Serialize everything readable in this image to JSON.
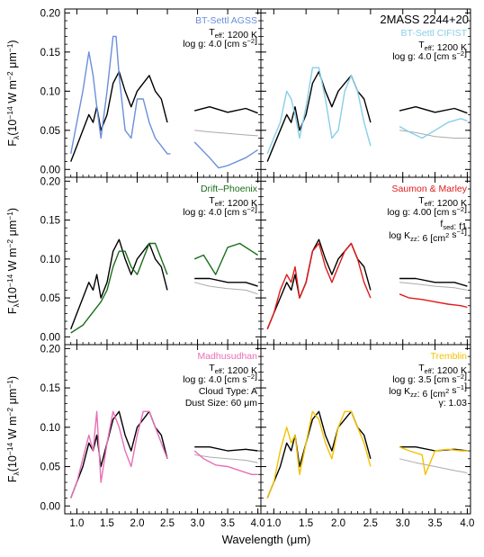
{
  "figure": {
    "object_name": "2MASS 2244+20",
    "ylabel_parts": {
      "f": "F",
      "lambda": "λ",
      "pre": "(10",
      "exp": "−14",
      "mid": " W m",
      "exp2": "−2",
      "mid2": " μm",
      "exp3": "−1",
      "post": ")"
    },
    "xlabel": "Wavelength (μm)",
    "y_ticks": [
      "0.00",
      "0.05",
      "0.10",
      "0.15",
      "0.20"
    ],
    "x_ticks": [
      "1.0",
      "1.5",
      "2.0",
      "2.5",
      "3.0",
      "3.5",
      "4.0"
    ],
    "observed_color": "#000000",
    "smoothed_color": "#aaaaaa"
  },
  "chart_data": [
    {
      "type": "line",
      "panel": "BT-Settl AGSS",
      "model_color": "#6a8fdb",
      "annotations": [
        [
          "BT-Settl AGSS"
        ],
        [
          "T",
          "eff",
          ": 1200 K"
        ],
        [
          "log g: 4.0 [cm s",
          "−2",
          "]"
        ]
      ],
      "xlim": [
        0.8,
        4.05
      ],
      "ylim": [
        -0.01,
        0.205
      ],
      "series": [
        {
          "name": "observed",
          "x": [
            0.9,
            1.0,
            1.1,
            1.2,
            1.27,
            1.33,
            1.4,
            1.5,
            1.6,
            1.7,
            1.8,
            1.9,
            2.0,
            2.1,
            2.2,
            2.3,
            2.4,
            2.5
          ],
          "y": [
            0.01,
            0.03,
            0.05,
            0.07,
            0.06,
            0.08,
            0.05,
            0.07,
            0.11,
            0.125,
            0.1,
            0.08,
            0.1,
            0.11,
            0.12,
            0.1,
            0.09,
            0.06
          ]
        },
        {
          "name": "observed",
          "x": [
            2.95,
            3.2,
            3.5,
            3.8,
            4.0
          ],
          "y": [
            0.075,
            0.08,
            0.073,
            0.078,
            0.072
          ]
        },
        {
          "name": "model",
          "x": [
            0.9,
            1.0,
            1.1,
            1.2,
            1.27,
            1.33,
            1.4,
            1.5,
            1.6,
            1.65,
            1.7,
            1.8,
            1.9,
            2.0,
            2.1,
            2.2,
            2.3,
            2.4,
            2.5,
            2.55
          ],
          "y": [
            0.02,
            0.06,
            0.1,
            0.15,
            0.12,
            0.08,
            0.04,
            0.1,
            0.17,
            0.17,
            0.12,
            0.05,
            0.04,
            0.09,
            0.09,
            0.06,
            0.04,
            0.03,
            0.02,
            0.02
          ]
        },
        {
          "name": "model",
          "x": [
            2.95,
            3.2,
            3.35,
            3.5,
            3.8,
            4.0
          ],
          "y": [
            0.035,
            0.015,
            0.002,
            0.005,
            0.015,
            0.025
          ]
        },
        {
          "name": "smoothed",
          "x": [
            2.95,
            3.2,
            3.5,
            3.8,
            4.0
          ],
          "y": [
            0.05,
            0.048,
            0.046,
            0.044,
            0.043
          ]
        }
      ]
    },
    {
      "type": "line",
      "panel": "BT-Settl CIFIST",
      "model_color": "#87cfe8",
      "annotations": [
        [
          "BT-Settl CIFIST"
        ],
        [
          "T",
          "eff",
          ": 1200 K"
        ],
        [
          "log g: 4.0 [cm s",
          "−2",
          "]"
        ]
      ],
      "xlim": [
        0.8,
        4.05
      ],
      "ylim": [
        -0.01,
        0.205
      ],
      "series": [
        {
          "name": "observed",
          "x": [
            0.9,
            1.0,
            1.1,
            1.2,
            1.27,
            1.33,
            1.4,
            1.5,
            1.6,
            1.7,
            1.8,
            1.9,
            2.0,
            2.1,
            2.2,
            2.3,
            2.4,
            2.5
          ],
          "y": [
            0.01,
            0.03,
            0.05,
            0.07,
            0.06,
            0.08,
            0.05,
            0.07,
            0.11,
            0.125,
            0.1,
            0.08,
            0.1,
            0.11,
            0.12,
            0.1,
            0.09,
            0.06
          ]
        },
        {
          "name": "observed",
          "x": [
            2.95,
            3.2,
            3.5,
            3.8,
            4.0
          ],
          "y": [
            0.075,
            0.08,
            0.073,
            0.078,
            0.072
          ]
        },
        {
          "name": "model",
          "x": [
            0.9,
            1.0,
            1.1,
            1.2,
            1.27,
            1.33,
            1.4,
            1.5,
            1.6,
            1.7,
            1.8,
            1.9,
            2.0,
            2.1,
            2.2,
            2.3,
            2.4,
            2.5
          ],
          "y": [
            0.02,
            0.04,
            0.06,
            0.1,
            0.09,
            0.07,
            0.04,
            0.08,
            0.13,
            0.13,
            0.09,
            0.04,
            0.05,
            0.1,
            0.12,
            0.1,
            0.06,
            0.03
          ]
        },
        {
          "name": "model",
          "x": [
            2.95,
            3.1,
            3.3,
            3.5,
            3.7,
            3.9,
            4.0
          ],
          "y": [
            0.055,
            0.048,
            0.04,
            0.05,
            0.06,
            0.065,
            0.062
          ]
        },
        {
          "name": "smoothed",
          "x": [
            2.95,
            3.2,
            3.5,
            3.8,
            4.0
          ],
          "y": [
            0.05,
            0.047,
            0.042,
            0.04,
            0.04
          ]
        }
      ]
    },
    {
      "type": "line",
      "panel": "Drift–Phoenix",
      "model_color": "#1a6e1a",
      "annotations": [
        [
          "Drift–Phoenix"
        ],
        [
          "T",
          "eff",
          ": 1200 K"
        ],
        [
          "log g: 4.0 [cm s",
          "−2",
          "]"
        ]
      ],
      "xlim": [
        0.8,
        4.05
      ],
      "ylim": [
        -0.01,
        0.205
      ],
      "series": [
        {
          "name": "observed",
          "x": [
            0.9,
            1.0,
            1.1,
            1.2,
            1.27,
            1.33,
            1.4,
            1.5,
            1.6,
            1.7,
            1.8,
            1.9,
            2.0,
            2.1,
            2.2,
            2.3,
            2.4,
            2.5
          ],
          "y": [
            0.01,
            0.03,
            0.05,
            0.07,
            0.06,
            0.08,
            0.05,
            0.07,
            0.11,
            0.125,
            0.1,
            0.08,
            0.1,
            0.11,
            0.12,
            0.1,
            0.09,
            0.06
          ]
        },
        {
          "name": "observed",
          "x": [
            2.95,
            3.2,
            3.5,
            3.8,
            4.0
          ],
          "y": [
            0.075,
            0.075,
            0.07,
            0.07,
            0.065
          ]
        },
        {
          "name": "model",
          "x": [
            0.9,
            1.0,
            1.1,
            1.2,
            1.3,
            1.4,
            1.5,
            1.6,
            1.7,
            1.8,
            1.9,
            2.0,
            2.1,
            2.2,
            2.3,
            2.4,
            2.5
          ],
          "y": [
            0.005,
            0.01,
            0.015,
            0.025,
            0.035,
            0.045,
            0.06,
            0.09,
            0.11,
            0.11,
            0.09,
            0.08,
            0.1,
            0.12,
            0.12,
            0.1,
            0.08
          ]
        },
        {
          "name": "model",
          "x": [
            2.95,
            3.1,
            3.3,
            3.5,
            3.7,
            3.9,
            4.0
          ],
          "y": [
            0.1,
            0.105,
            0.08,
            0.115,
            0.12,
            0.11,
            0.105
          ]
        },
        {
          "name": "smoothed",
          "x": [
            2.95,
            3.2,
            3.5,
            3.8,
            4.0
          ],
          "y": [
            0.07,
            0.065,
            0.062,
            0.06,
            0.055
          ]
        }
      ]
    },
    {
      "type": "line",
      "panel": "Saumon & Marley",
      "model_color": "#e11a1a",
      "annotations": [
        [
          "Saumon & Marley"
        ],
        [
          "T",
          "eff",
          ": 1200 K"
        ],
        [
          "log g: 4.00 [cm s",
          "−2",
          "]"
        ],
        [
          "f",
          "sed",
          ": f1"
        ],
        [
          "log K",
          "zz",
          ": 6 [cm",
          "2",
          " s",
          "−1",
          "]"
        ]
      ],
      "xlim": [
        0.8,
        4.05
      ],
      "ylim": [
        -0.01,
        0.205
      ],
      "series": [
        {
          "name": "observed",
          "x": [
            0.9,
            1.0,
            1.1,
            1.2,
            1.27,
            1.33,
            1.4,
            1.5,
            1.6,
            1.7,
            1.8,
            1.9,
            2.0,
            2.1,
            2.2,
            2.3,
            2.4,
            2.5
          ],
          "y": [
            0.01,
            0.03,
            0.05,
            0.07,
            0.06,
            0.08,
            0.05,
            0.07,
            0.11,
            0.125,
            0.1,
            0.08,
            0.1,
            0.11,
            0.12,
            0.1,
            0.09,
            0.06
          ]
        },
        {
          "name": "observed",
          "x": [
            2.95,
            3.2,
            3.5,
            3.8,
            4.0
          ],
          "y": [
            0.075,
            0.075,
            0.07,
            0.07,
            0.065
          ]
        },
        {
          "name": "model",
          "x": [
            0.9,
            1.0,
            1.1,
            1.2,
            1.27,
            1.33,
            1.4,
            1.5,
            1.6,
            1.7,
            1.8,
            1.9,
            2.0,
            2.1,
            2.2,
            2.3,
            2.4,
            2.5
          ],
          "y": [
            0.01,
            0.03,
            0.06,
            0.08,
            0.07,
            0.09,
            0.05,
            0.07,
            0.11,
            0.12,
            0.09,
            0.07,
            0.09,
            0.11,
            0.12,
            0.1,
            0.07,
            0.05
          ]
        },
        {
          "name": "model",
          "x": [
            2.95,
            3.1,
            3.3,
            3.5,
            3.7,
            3.9,
            4.0
          ],
          "y": [
            0.055,
            0.05,
            0.048,
            0.045,
            0.042,
            0.04,
            0.038
          ]
        },
        {
          "name": "smoothed",
          "x": [
            2.95,
            3.2,
            3.5,
            3.8,
            4.0
          ],
          "y": [
            0.07,
            0.068,
            0.065,
            0.063,
            0.06
          ]
        }
      ]
    },
    {
      "type": "line",
      "panel": "Madhusudhan",
      "model_color": "#e86fb6",
      "annotations": [
        [
          "Madhusudhan"
        ],
        [
          "T",
          "eff",
          ": 1200 K"
        ],
        [
          "log g: 4.0 [cm s",
          "−2",
          "]"
        ],
        [
          "Cloud Type: A"
        ],
        [
          "Dust Size: 60 μm"
        ]
      ],
      "xlim": [
        0.8,
        4.05
      ],
      "ylim": [
        -0.01,
        0.205
      ],
      "series": [
        {
          "name": "observed",
          "x": [
            0.9,
            1.0,
            1.1,
            1.2,
            1.27,
            1.33,
            1.4,
            1.5,
            1.6,
            1.7,
            1.8,
            1.9,
            2.0,
            2.1,
            2.2,
            2.3,
            2.4,
            2.5
          ],
          "y": [
            0.01,
            0.03,
            0.05,
            0.08,
            0.07,
            0.09,
            0.05,
            0.08,
            0.11,
            0.12,
            0.09,
            0.07,
            0.1,
            0.11,
            0.12,
            0.1,
            0.09,
            0.06
          ]
        },
        {
          "name": "observed",
          "x": [
            2.95,
            3.2,
            3.5,
            3.8,
            4.0
          ],
          "y": [
            0.075,
            0.075,
            0.07,
            0.072,
            0.07
          ]
        },
        {
          "name": "model",
          "x": [
            0.9,
            1.0,
            1.1,
            1.2,
            1.27,
            1.33,
            1.4,
            1.5,
            1.6,
            1.7,
            1.8,
            1.9,
            2.0,
            2.1,
            2.2,
            2.3,
            2.4,
            2.5
          ],
          "y": [
            0.01,
            0.03,
            0.06,
            0.09,
            0.07,
            0.12,
            0.03,
            0.08,
            0.12,
            0.1,
            0.07,
            0.05,
            0.09,
            0.12,
            0.12,
            0.1,
            0.08,
            0.06
          ]
        },
        {
          "name": "model",
          "x": [
            2.95,
            3.1,
            3.3,
            3.5,
            3.7,
            3.9,
            4.0
          ],
          "y": [
            0.07,
            0.06,
            0.052,
            0.05,
            0.045,
            0.04,
            0.04
          ]
        },
        {
          "name": "smoothed",
          "x": [
            2.95,
            3.2,
            3.5,
            3.8,
            4.0
          ],
          "y": [
            0.065,
            0.062,
            0.06,
            0.058,
            0.055
          ]
        }
      ]
    },
    {
      "type": "line",
      "panel": "Tremblin",
      "model_color": "#f2c200",
      "annotations": [
        [
          "Tremblin"
        ],
        [
          "T",
          "eff",
          ": 1200 K"
        ],
        [
          "log g: 3.5 [cm s",
          "−2",
          "]"
        ],
        [
          "log K",
          "zz",
          ": 6 [cm",
          "2",
          " s",
          "−1",
          "]"
        ],
        [
          "γ: 1.03"
        ]
      ],
      "xlim": [
        0.8,
        4.05
      ],
      "ylim": [
        -0.01,
        0.205
      ],
      "series": [
        {
          "name": "observed",
          "x": [
            0.9,
            1.0,
            1.1,
            1.2,
            1.27,
            1.33,
            1.4,
            1.5,
            1.6,
            1.7,
            1.8,
            1.9,
            2.0,
            2.1,
            2.2,
            2.3,
            2.4,
            2.5
          ],
          "y": [
            0.01,
            0.03,
            0.05,
            0.08,
            0.07,
            0.09,
            0.05,
            0.08,
            0.11,
            0.12,
            0.09,
            0.07,
            0.1,
            0.11,
            0.12,
            0.1,
            0.09,
            0.06
          ]
        },
        {
          "name": "observed",
          "x": [
            2.95,
            3.2,
            3.5,
            3.8,
            4.0
          ],
          "y": [
            0.075,
            0.075,
            0.07,
            0.072,
            0.07
          ]
        },
        {
          "name": "model",
          "x": [
            0.9,
            1.0,
            1.1,
            1.2,
            1.27,
            1.33,
            1.4,
            1.5,
            1.6,
            1.7,
            1.8,
            1.9,
            2.0,
            2.1,
            2.2,
            2.3,
            2.4,
            2.5
          ],
          "y": [
            0.01,
            0.03,
            0.07,
            0.1,
            0.08,
            0.09,
            0.04,
            0.08,
            0.12,
            0.11,
            0.08,
            0.06,
            0.1,
            0.12,
            0.12,
            0.1,
            0.08,
            0.05
          ]
        },
        {
          "name": "model",
          "x": [
            2.95,
            3.1,
            3.3,
            3.35,
            3.5,
            3.7,
            3.9,
            4.0
          ],
          "y": [
            0.075,
            0.07,
            0.065,
            0.04,
            0.07,
            0.072,
            0.07,
            0.07
          ]
        },
        {
          "name": "smoothed",
          "x": [
            2.95,
            3.2,
            3.5,
            3.8,
            4.0
          ],
          "y": [
            0.06,
            0.055,
            0.05,
            0.045,
            0.042
          ]
        }
      ]
    }
  ]
}
